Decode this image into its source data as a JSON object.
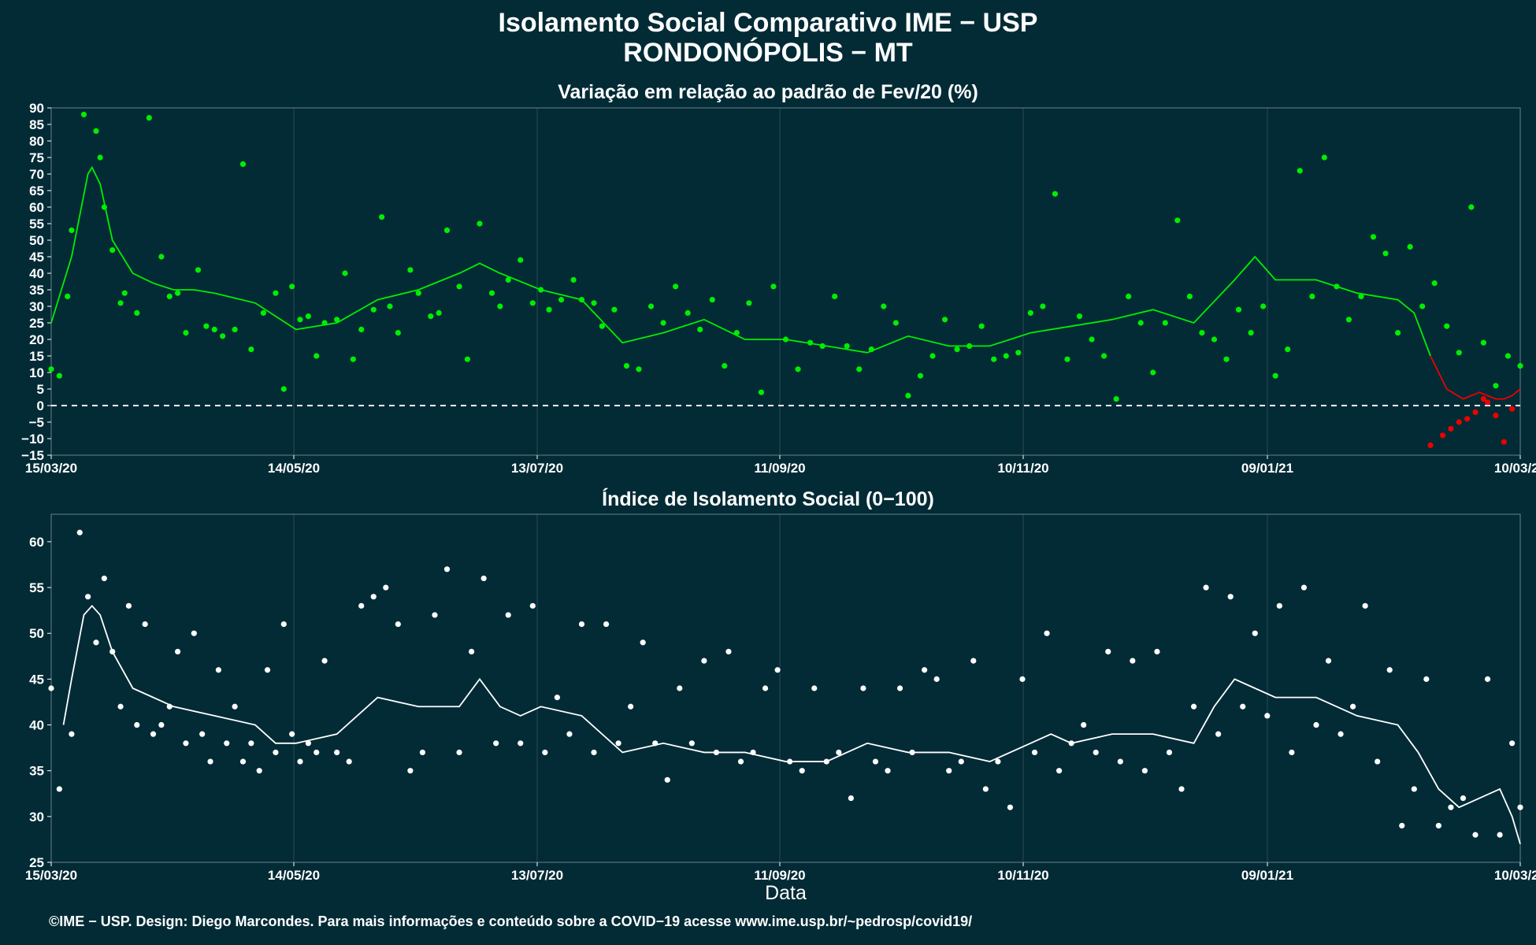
{
  "title_line1": "Isolamento Social Comparativo IME − USP",
  "title_line2": "RONDONÓPOLIS − MT",
  "footer": "©IME − USP. Design: Diego Marcondes. Para mais informações e conteúdo sobre a COVID−19 acesse www.ime.usp.br/~pedrosp/covid19/",
  "colors": {
    "background": "#022b36",
    "grid": "#2e4a52",
    "green": "#00ee00",
    "red": "#ee0000",
    "white": "#ffffff"
  },
  "chart_data": [
    {
      "type": "scatter",
      "title": "Variação em relação ao padrão de Fev/20 (%)",
      "x_tick_labels": [
        "15/03/20",
        "14/05/20",
        "13/07/20",
        "11/09/20",
        "10/11/20",
        "09/01/21",
        "10/03/21"
      ],
      "x_range_days": [
        0,
        360
      ],
      "ylim": [
        -15,
        90
      ],
      "y_ticks": [
        -15,
        -10,
        -5,
        0,
        5,
        10,
        15,
        20,
        25,
        30,
        35,
        40,
        45,
        50,
        55,
        60,
        65,
        70,
        75,
        80,
        85,
        90
      ],
      "reference_line": 0,
      "series": [
        {
          "color": "green",
          "x": [
            0,
            2,
            4,
            5,
            8,
            11,
            12,
            13,
            15,
            17,
            18,
            21,
            24,
            27,
            29,
            31,
            33,
            36,
            38,
            40,
            42,
            45,
            47,
            49,
            52,
            55,
            57,
            59,
            61,
            63,
            65,
            67,
            70,
            72,
            74,
            76,
            79,
            81,
            83,
            85,
            88,
            90,
            93,
            95,
            97,
            100,
            102,
            105,
            108,
            110,
            112,
            115,
            118,
            120,
            122,
            125,
            128,
            130,
            133,
            135,
            138,
            141,
            144,
            147,
            150,
            153,
            156,
            159,
            162,
            165,
            168,
            171,
            174,
            177,
            180,
            183,
            186,
            189,
            192,
            195,
            198,
            201,
            204,
            207,
            210,
            213,
            216,
            219,
            222,
            225,
            228,
            231,
            234,
            237,
            240,
            243,
            246,
            249,
            252,
            255,
            258,
            261,
            264,
            267,
            270,
            273,
            276,
            279,
            282,
            285,
            288,
            291,
            294,
            297,
            300,
            303,
            306,
            309,
            312,
            315,
            318,
            321,
            324,
            327,
            330,
            333,
            336,
            339,
            342,
            345,
            348,
            351,
            354,
            357,
            360
          ],
          "y": [
            11,
            9,
            33,
            53,
            88,
            83,
            75,
            60,
            47,
            31,
            34,
            28,
            87,
            45,
            33,
            34,
            22,
            41,
            24,
            23,
            21,
            23,
            73,
            17,
            28,
            34,
            5,
            36,
            26,
            27,
            15,
            25,
            26,
            40,
            14,
            23,
            29,
            57,
            30,
            22,
            41,
            34,
            27,
            28,
            53,
            36,
            14,
            55,
            34,
            30,
            38,
            44,
            31,
            35,
            29,
            32,
            38,
            32,
            31,
            24,
            29,
            12,
            11,
            30,
            25,
            36,
            28,
            23,
            32,
            12,
            22,
            31,
            4,
            36,
            20,
            11,
            19,
            18,
            33,
            18,
            11,
            17,
            30,
            25,
            3,
            9,
            15,
            26,
            17,
            18,
            24,
            14,
            15,
            16,
            28,
            30,
            64,
            14,
            27,
            20,
            15,
            2,
            33,
            25,
            10,
            25,
            56,
            33,
            22,
            20,
            14,
            29,
            22,
            30,
            9,
            17,
            71,
            33,
            75,
            36,
            26,
            33,
            51,
            46,
            22,
            48,
            30,
            37,
            24,
            16,
            60,
            19,
            6,
            15,
            12
          ]
        },
        {
          "color": "red",
          "x": [
            338,
            341,
            343,
            345,
            347,
            349,
            351,
            352,
            354,
            356,
            358
          ],
          "y": [
            -12,
            -9,
            -7,
            -5,
            -4,
            -2,
            2,
            1,
            -3,
            -11,
            -1
          ]
        }
      ],
      "moving_average": {
        "x": [
          0,
          5,
          9,
          10,
          12,
          15,
          20,
          25,
          30,
          35,
          40,
          50,
          60,
          70,
          80,
          90,
          100,
          105,
          110,
          120,
          130,
          140,
          150,
          160,
          170,
          180,
          190,
          200,
          210,
          220,
          230,
          240,
          250,
          260,
          270,
          280,
          290,
          295,
          300,
          310,
          320,
          330,
          334,
          338,
          342,
          346,
          350,
          352,
          354,
          356,
          358,
          360
        ],
        "y": [
          25,
          45,
          70,
          72,
          67,
          50,
          40,
          37,
          35,
          35,
          34,
          31,
          23,
          25,
          32,
          35,
          40,
          43,
          40,
          35,
          32,
          19,
          22,
          26,
          20,
          20,
          18,
          16,
          21,
          18,
          18,
          22,
          24,
          26,
          29,
          25,
          38,
          45,
          38,
          38,
          34,
          32,
          28,
          15,
          5,
          2,
          4,
          3,
          2,
          2,
          3,
          5
        ],
        "red_from_x": 338
      }
    },
    {
      "type": "scatter",
      "title": "Índice de Isolamento Social (0−100)",
      "x_tick_labels": [
        "15/03/20",
        "14/05/20",
        "13/07/20",
        "11/09/20",
        "10/11/20",
        "09/01/21",
        "10/03/21"
      ],
      "x_range_days": [
        0,
        360
      ],
      "ylim": [
        25,
        63
      ],
      "y_ticks": [
        25,
        30,
        35,
        40,
        45,
        50,
        55,
        60
      ],
      "xlabel": "Data",
      "series": [
        {
          "color": "white",
          "x": [
            0,
            2,
            5,
            7,
            9,
            11,
            13,
            15,
            17,
            19,
            21,
            23,
            25,
            27,
            29,
            31,
            33,
            35,
            37,
            39,
            41,
            43,
            45,
            47,
            49,
            51,
            53,
            55,
            57,
            59,
            61,
            63,
            65,
            67,
            70,
            73,
            76,
            79,
            82,
            85,
            88,
            91,
            94,
            97,
            100,
            103,
            106,
            109,
            112,
            115,
            118,
            121,
            124,
            127,
            130,
            133,
            136,
            139,
            142,
            145,
            148,
            151,
            154,
            157,
            160,
            163,
            166,
            169,
            172,
            175,
            178,
            181,
            184,
            187,
            190,
            193,
            196,
            199,
            202,
            205,
            208,
            211,
            214,
            217,
            220,
            223,
            226,
            229,
            232,
            235,
            238,
            241,
            244,
            247,
            250,
            253,
            256,
            259,
            262,
            265,
            268,
            271,
            274,
            277,
            280,
            283,
            286,
            289,
            292,
            295,
            298,
            301,
            304,
            307,
            310,
            313,
            316,
            319,
            322,
            325,
            328,
            331,
            334,
            337,
            340,
            343,
            346,
            349,
            352,
            355,
            358,
            360
          ],
          "y": [
            44,
            33,
            39,
            61,
            54,
            49,
            56,
            48,
            42,
            53,
            40,
            51,
            39,
            40,
            42,
            48,
            38,
            50,
            39,
            36,
            46,
            38,
            42,
            36,
            38,
            35,
            46,
            37,
            51,
            39,
            36,
            38,
            37,
            47,
            37,
            36,
            53,
            54,
            55,
            51,
            35,
            37,
            52,
            57,
            37,
            48,
            56,
            38,
            52,
            38,
            53,
            37,
            43,
            39,
            51,
            37,
            51,
            38,
            42,
            49,
            38,
            34,
            44,
            38,
            47,
            37,
            48,
            36,
            37,
            44,
            46,
            36,
            35,
            44,
            36,
            37,
            32,
            44,
            36,
            35,
            44,
            37,
            46,
            45,
            35,
            36,
            47,
            33,
            36,
            31,
            45,
            37,
            50,
            35,
            38,
            40,
            37,
            48,
            36,
            47,
            35,
            48,
            37,
            33,
            42,
            55,
            39,
            54,
            42,
            50,
            41,
            53,
            37,
            55,
            40,
            47,
            39,
            42,
            53,
            36,
            46,
            29,
            33,
            45,
            29,
            31,
            32,
            28,
            45,
            28,
            38,
            31
          ]
        }
      ],
      "moving_average": {
        "x": [
          3,
          5,
          8,
          10,
          12,
          15,
          20,
          25,
          30,
          40,
          50,
          55,
          60,
          70,
          80,
          90,
          100,
          105,
          110,
          115,
          120,
          130,
          140,
          150,
          160,
          170,
          180,
          190,
          200,
          210,
          220,
          230,
          240,
          245,
          250,
          260,
          270,
          280,
          285,
          290,
          295,
          300,
          310,
          320,
          330,
          335,
          340,
          345,
          350,
          355,
          358,
          360
        ],
        "y": [
          40,
          45,
          52,
          53,
          52,
          48,
          44,
          43,
          42,
          41,
          40,
          38,
          38,
          39,
          43,
          42,
          42,
          45,
          42,
          41,
          42,
          41,
          37,
          38,
          37,
          37,
          36,
          36,
          38,
          37,
          37,
          36,
          38,
          39,
          38,
          39,
          39,
          38,
          42,
          45,
          44,
          43,
          43,
          41,
          40,
          37,
          33,
          31,
          32,
          33,
          30,
          27
        ]
      }
    }
  ]
}
